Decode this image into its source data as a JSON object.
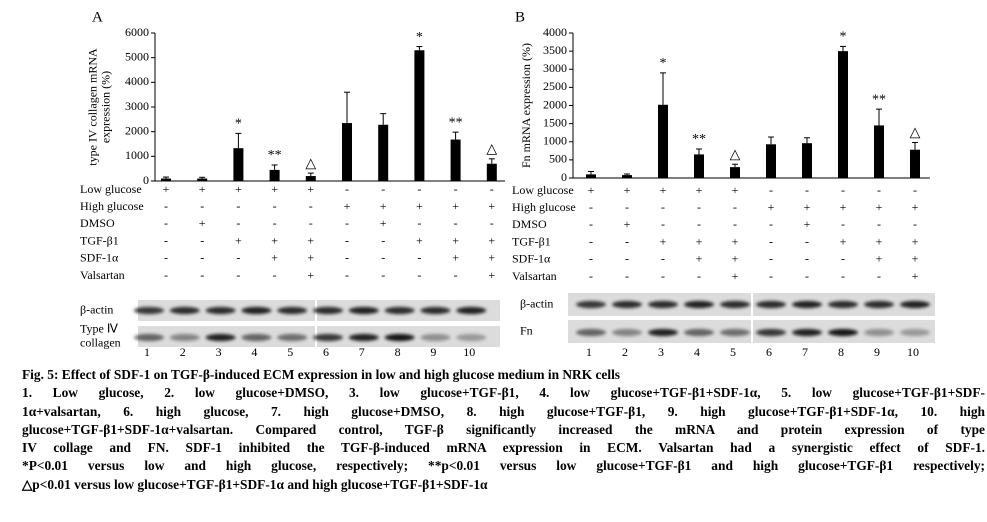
{
  "chart_data": [
    {
      "type": "bar",
      "panel": "A",
      "ylabel": [
        "type IV collagen mRNA",
        "expression (%)"
      ],
      "categories": [
        "1",
        "2",
        "3",
        "4",
        "5",
        "6",
        "7",
        "8",
        "9",
        "10"
      ],
      "values": [
        100,
        100,
        1330,
        450,
        200,
        2350,
        2280,
        5300,
        1680,
        700
      ],
      "errors": [
        60,
        50,
        600,
        200,
        120,
        1250,
        450,
        150,
        300,
        200
      ],
      "annotations": [
        null,
        null,
        "*",
        "**",
        "△",
        null,
        null,
        "*",
        "**",
        "△"
      ],
      "color": "#000000",
      "ylim": [
        0,
        6000
      ],
      "yticks": [
        0,
        1000,
        2000,
        3000,
        4000,
        5000,
        6000
      ],
      "treatments": [
        {
          "name": "Low glucose",
          "marks": [
            "+",
            "+",
            "+",
            "+",
            "+",
            "-",
            "-",
            "-",
            "-",
            "-"
          ]
        },
        {
          "name": "High glucose",
          "marks": [
            "-",
            "-",
            "-",
            "-",
            "-",
            "+",
            "+",
            "+",
            "+",
            "+"
          ]
        },
        {
          "name": "DMSO",
          "marks": [
            "-",
            "+",
            "-",
            "-",
            "-",
            "-",
            "+",
            "-",
            "-",
            "-"
          ]
        },
        {
          "name": "TGF-β1",
          "marks": [
            "-",
            "-",
            "+",
            "+",
            "+",
            "-",
            "-",
            "+",
            "+",
            "+"
          ]
        },
        {
          "name": "SDF-1α",
          "marks": [
            "-",
            "-",
            "-",
            "+",
            "+",
            "-",
            "-",
            "-",
            "+",
            "+"
          ]
        },
        {
          "name": "Valsartan",
          "marks": [
            "-",
            "-",
            "-",
            "-",
            "+",
            "-",
            "-",
            "-",
            "-",
            "+"
          ]
        }
      ],
      "blots": [
        {
          "lines": [
            "β-actin"
          ]
        },
        {
          "lines": [
            "Type Ⅳ",
            "collagen"
          ]
        }
      ]
    },
    {
      "type": "bar",
      "panel": "B",
      "ylabel": [
        "Fn mRNA expression (%)"
      ],
      "categories": [
        "1",
        "2",
        "3",
        "4",
        "5",
        "6",
        "7",
        "8",
        "9",
        "10"
      ],
      "values": [
        100,
        80,
        2020,
        650,
        300,
        930,
        960,
        3500,
        1450,
        780
      ],
      "errors": [
        80,
        30,
        880,
        150,
        80,
        200,
        150,
        130,
        450,
        200
      ],
      "annotations": [
        null,
        null,
        "*",
        "**",
        "△",
        null,
        null,
        "*",
        "**",
        "△"
      ],
      "color": "#000000",
      "ylim": [
        0,
        4000
      ],
      "yticks": [
        0,
        500,
        1000,
        1500,
        2000,
        2500,
        3000,
        3500,
        4000
      ],
      "treatments": [
        {
          "name": "Low glucose",
          "marks": [
            "+",
            "+",
            "+",
            "+",
            "+",
            "-",
            "-",
            "-",
            "-",
            "-"
          ]
        },
        {
          "name": "High glucose",
          "marks": [
            "-",
            "-",
            "-",
            "-",
            "-",
            "+",
            "+",
            "+",
            "+",
            "+"
          ]
        },
        {
          "name": "DMSO",
          "marks": [
            "-",
            "+",
            "-",
            "-",
            "-",
            "-",
            "+",
            "-",
            "-",
            "-"
          ]
        },
        {
          "name": "TGF-β1",
          "marks": [
            "-",
            "-",
            "+",
            "+",
            "+",
            "-",
            "-",
            "+",
            "+",
            "+"
          ]
        },
        {
          "name": "SDF-1α",
          "marks": [
            "-",
            "-",
            "-",
            "+",
            "+",
            "-",
            "-",
            "-",
            "+",
            "+"
          ]
        },
        {
          "name": "Valsartan",
          "marks": [
            "-",
            "-",
            "-",
            "-",
            "+",
            "-",
            "-",
            "-",
            "-",
            "+"
          ]
        }
      ],
      "blots": [
        {
          "lines": [
            "β-actin"
          ]
        },
        {
          "lines": [
            "Fn"
          ]
        }
      ]
    }
  ],
  "caption": {
    "title": "Fig. 5: Effect of SDF-1 on TGF-β-induced ECM expression in low and high glucose medium in NRK cells",
    "lines": [
      "1. Low glucose, 2. low glucose+DMSO, 3. low glucose+TGF-β1, 4. low glucose+TGF-β1+SDF-1α, 5. low glucose+TGF-β1+SDF-",
      "1α+valsartan, 6. high glucose, 7. high glucose+DMSO, 8. high glucose+TGF-β1, 9. high glucose+TGF-β1+SDF-1α, 10. high",
      "glucose+TGF-β1+SDF-1α+valsartan. Compared control, TGF-β significantly increased the mRNA and protein expression of type",
      "IV collage and FN. SDF-1 inhibited the TGF-β-induced mRNA expression in ECM. Valsartan had a synergistic effect of SDF-1.",
      "*P<0.01 versus low and high glucose, respectively; **p<0.01 versus low glucose+TGF-β1 and high glucose+TGF-β1 respectively;",
      "△p<0.01 versus low glucose+TGF-β1+SDF-1α and high glucose+TGF-β1+SDF-1α"
    ]
  }
}
